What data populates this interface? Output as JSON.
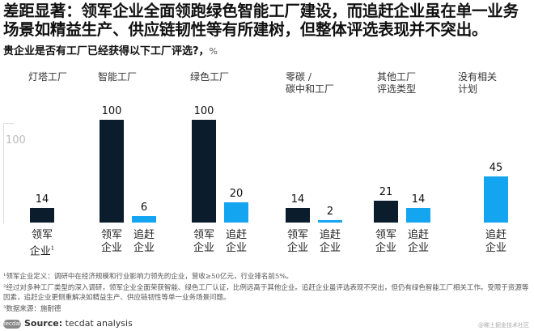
{
  "title": "差距显著：领军企业全面领跑绿色智能工厂建设，而追赶企业虽在单一业务场景如精益生产、供应链韧性等有所建树，但整体评选表现并不突出。",
  "chart_data": {
    "type": "bar",
    "title": "贵企业是否有工厂已经获得以下工厂评选?，",
    "unit": "%",
    "ylim": [
      0,
      100
    ],
    "grid": false,
    "legend_scale_label": "100",
    "categories": [
      "灯塔工厂",
      "智能工厂",
      "绿色工厂",
      "零碳 / 碳中和工厂",
      "其他工厂 评选类型",
      "没有相关 计划"
    ],
    "category_lines": [
      [
        "灯塔工厂"
      ],
      [
        "智能工厂"
      ],
      [
        "绿色工厂"
      ],
      [
        "零碳 /",
        "碳中和工厂"
      ],
      [
        "其他工厂",
        "评选类型"
      ],
      [
        "没有相关",
        "计划"
      ]
    ],
    "series": [
      {
        "name": "领军企业",
        "values": [
          14,
          100,
          100,
          14,
          21,
          null
        ],
        "color": "#0b1c2c"
      },
      {
        "name": "追赶企业",
        "values": [
          null,
          6,
          20,
          2,
          14,
          45
        ],
        "color": "#14a5f0"
      }
    ],
    "series_label_lines": {
      "领军企业": [
        "领军",
        "企业"
      ],
      "追赶企业": [
        "追赶",
        "企业"
      ]
    },
    "first_label_footnote": "1"
  },
  "notes": [
    "¹领军企业定义：调研中在经济规模和行业影响力领先的企业，营收≥50亿元，行业排名前5%。",
    "²经过对多种工厂类型的深入调研，领军企业全面荣获智能、绿色工厂认证，比例远高于其他企业。追赶企业虽评选表现不突出，但仍有绿色智能工厂相关工作。受限于资源等因素，追赶企业更侧重解决如精益生产、供应链韧性等单一业务场景问题。",
    "³数据来源：施耐德"
  ],
  "source": {
    "logo": "tecdat",
    "label": "Source:",
    "text": " tecdat analysis"
  },
  "watermark": "@稀土掘金技术社区"
}
